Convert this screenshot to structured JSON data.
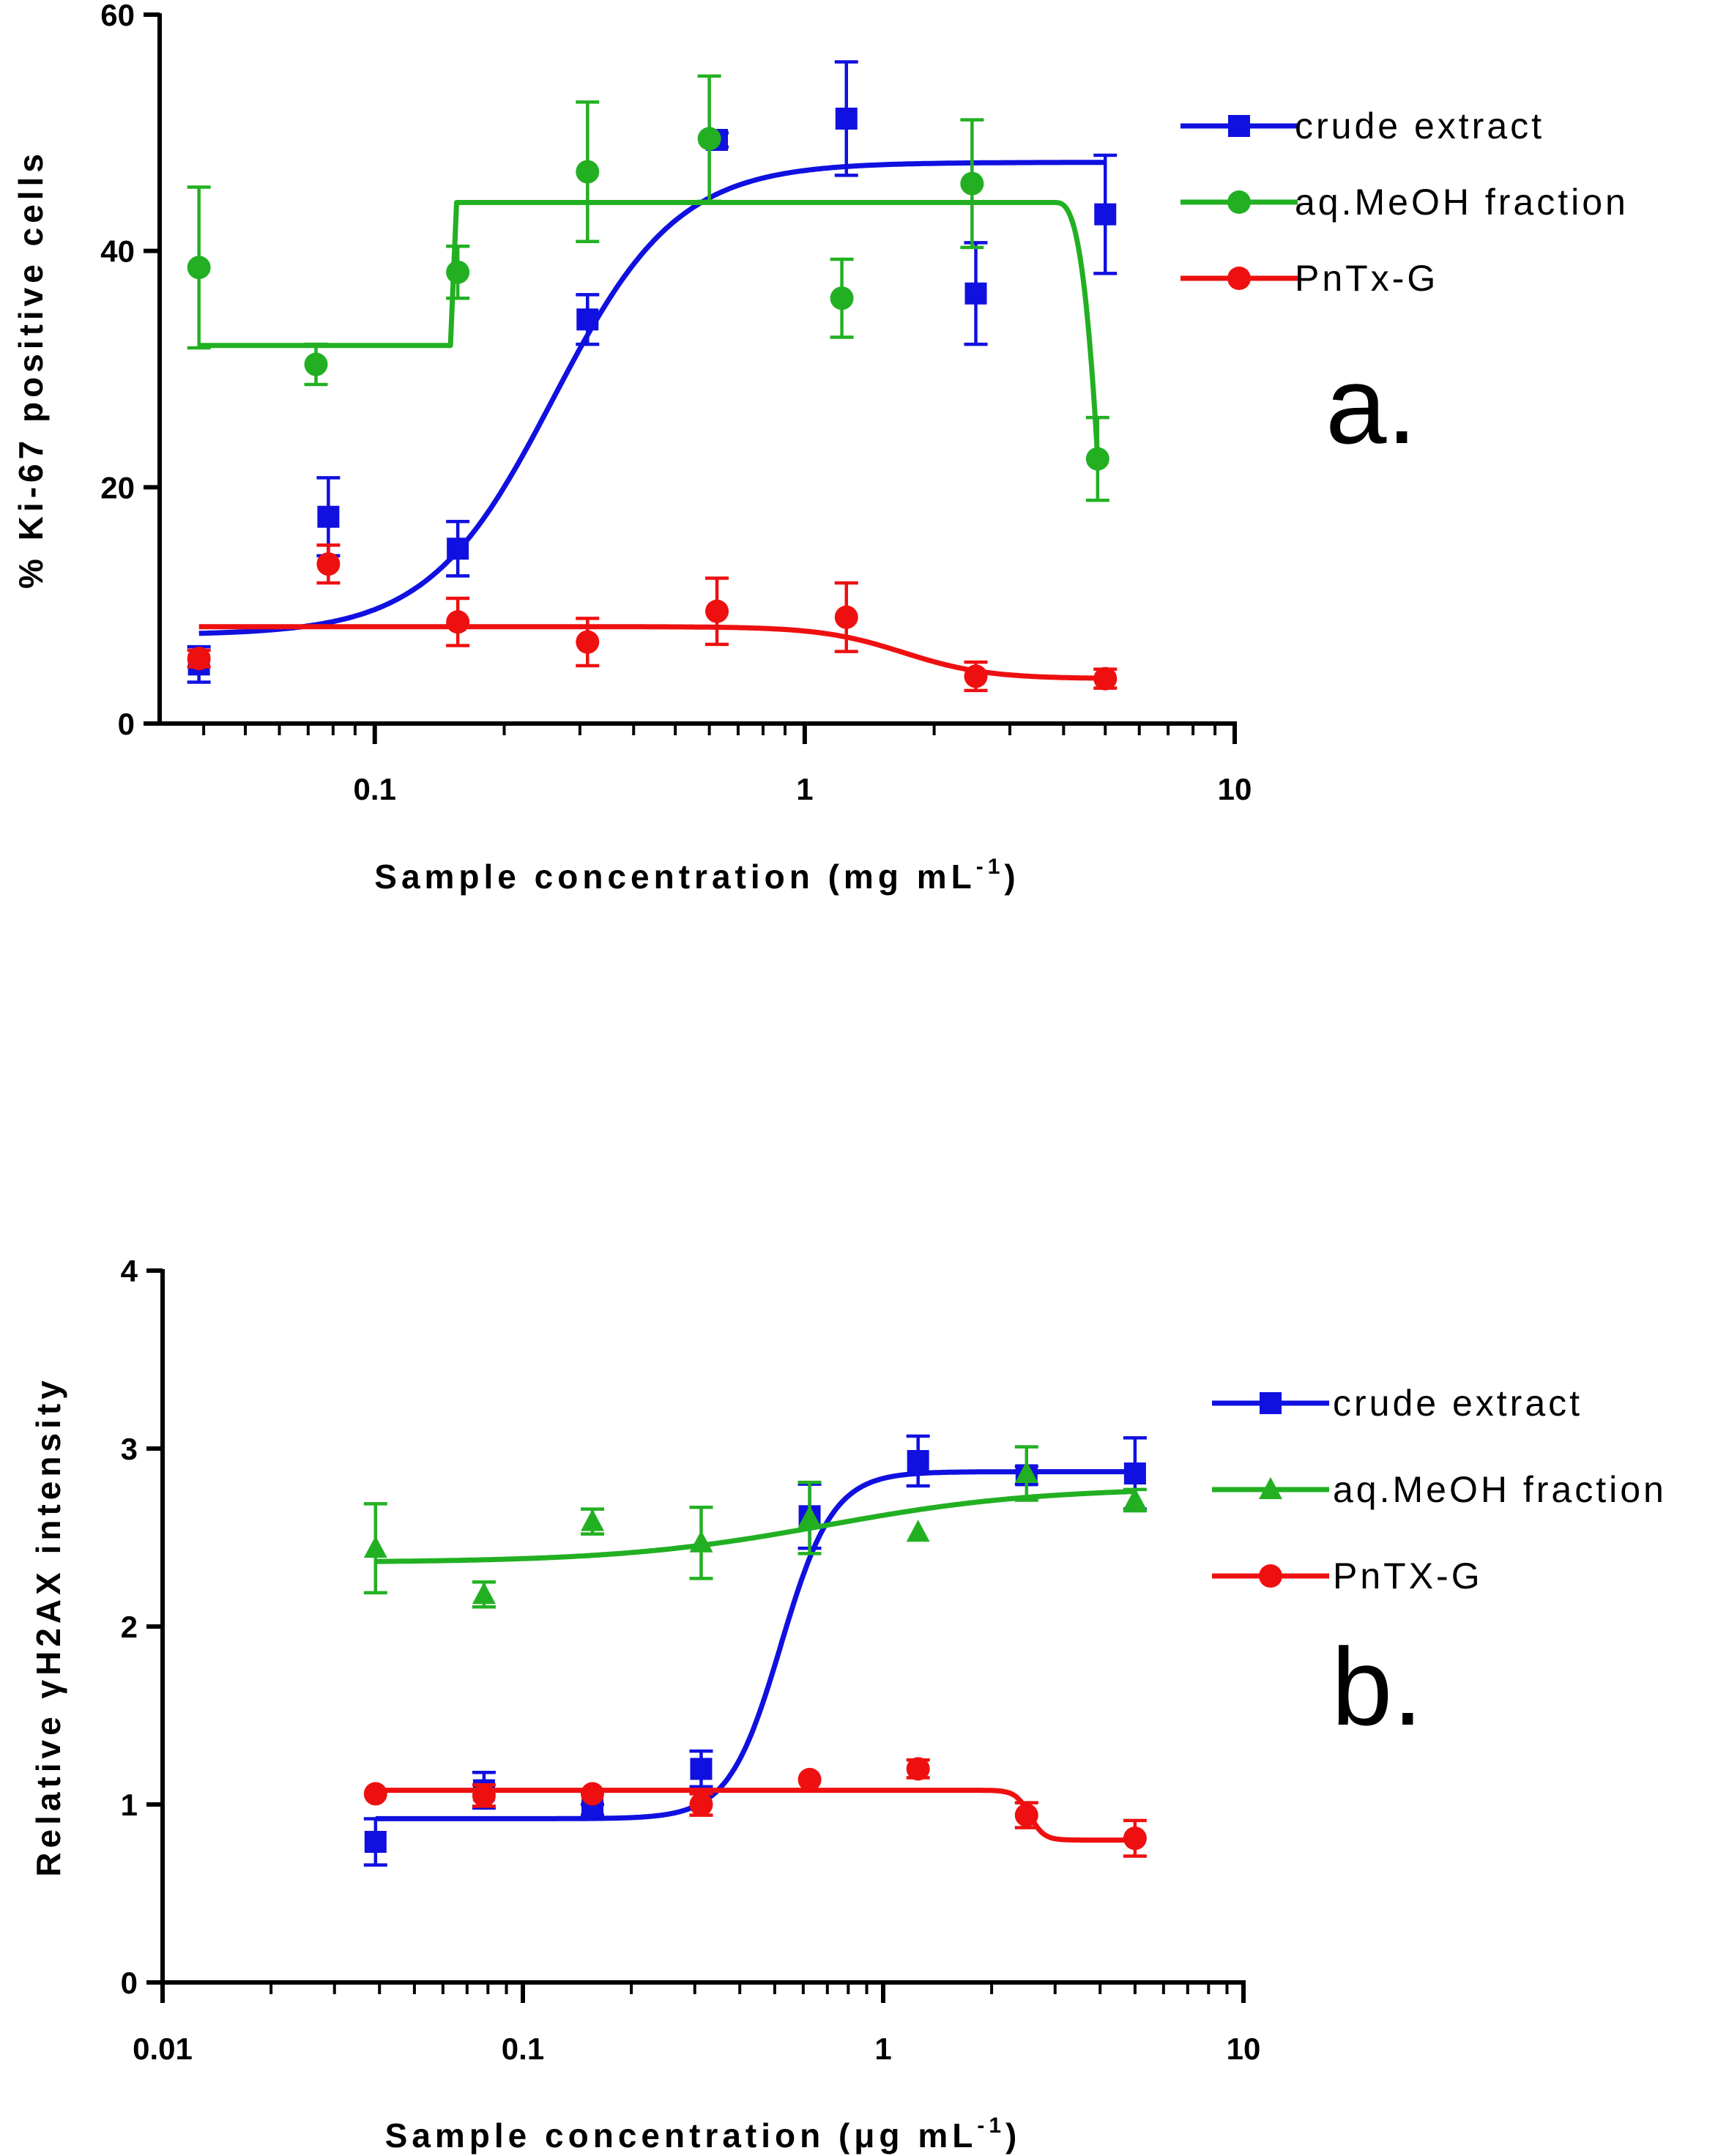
{
  "chart_data": [
    {
      "id": "panel-a",
      "type": "scatter",
      "panel_label": "a.",
      "xlabel": "Sample concentration (mg mL",
      "xlabel_sup": "-1",
      "xlabel_tail": ")",
      "ylabel": "% Ki-67 positive cells",
      "xscale": "log",
      "xlim": [
        0.0316,
        10
      ],
      "ylim": [
        0,
        60
      ],
      "xticks": [
        {
          "value": 0.1,
          "label": "0.1"
        },
        {
          "value": 1,
          "label": "1"
        },
        {
          "value": 10,
          "label": "10"
        }
      ],
      "yticks": [
        {
          "value": 0,
          "label": "0"
        },
        {
          "value": 20,
          "label": "20"
        },
        {
          "value": 40,
          "label": "40"
        },
        {
          "value": 60,
          "label": "60"
        }
      ],
      "series": [
        {
          "name": "crude extract",
          "color": "#1010e0",
          "marker": "square",
          "points": [
            {
              "x": 0.039,
              "y": 5.0,
              "err": 1.5
            },
            {
              "x": 0.078,
              "y": 17.5,
              "err": 3.3
            },
            {
              "x": 0.156,
              "y": 14.8,
              "err": 2.3
            },
            {
              "x": 0.3125,
              "y": 34.2,
              "err": 2.1
            },
            {
              "x": 0.625,
              "y": 49.4,
              "err": 0.6
            },
            {
              "x": 1.25,
              "y": 51.2,
              "err": 4.8
            },
            {
              "x": 2.5,
              "y": 36.4,
              "err": 4.3
            },
            {
              "x": 5.0,
              "y": 43.1,
              "err": 5.0
            }
          ],
          "curve": {
            "kind": "sigmoid",
            "bottom": 7.5,
            "top": 47.5,
            "ec50": 0.26,
            "hill": 3.0,
            "xmin": 0.039,
            "xmax": 5.0
          }
        },
        {
          "name": "aq.MeOH fraction",
          "color": "#22b022",
          "marker": "circle",
          "points": [
            {
              "x": 0.039,
              "y": 38.6,
              "err": 6.8
            },
            {
              "x": 0.073,
              "y": 30.4,
              "err": 1.7
            },
            {
              "x": 0.156,
              "y": 38.2,
              "err": 2.2
            },
            {
              "x": 0.3125,
              "y": 46.7,
              "err": 5.9
            },
            {
              "x": 0.6,
              "y": 49.5,
              "err": 5.3
            },
            {
              "x": 1.22,
              "y": 36.0,
              "err": 3.3
            },
            {
              "x": 2.45,
              "y": 45.7,
              "err": 5.4
            },
            {
              "x": 4.8,
              "y": 22.4,
              "err": 3.5
            }
          ],
          "curve": {
            "kind": "step",
            "levels": [
              32.0,
              44.1,
              22.4
            ],
            "x_steps": [
              0.039,
              0.15,
              0.155,
              3.8,
              4.8
            ]
          }
        },
        {
          "name": "PnTx-G",
          "color": "#ee1010",
          "marker": "circle",
          "points": [
            {
              "x": 0.039,
              "y": 5.5,
              "err": 0.7
            },
            {
              "x": 0.078,
              "y": 13.5,
              "err": 1.6
            },
            {
              "x": 0.156,
              "y": 8.6,
              "err": 2.0
            },
            {
              "x": 0.3125,
              "y": 6.9,
              "err": 2.0
            },
            {
              "x": 0.625,
              "y": 9.5,
              "err": 2.8
            },
            {
              "x": 1.25,
              "y": 9.0,
              "err": 2.9
            },
            {
              "x": 2.5,
              "y": 4.0,
              "err": 1.2
            },
            {
              "x": 5.0,
              "y": 3.8,
              "err": 0.8
            }
          ],
          "curve": {
            "kind": "sigmoid",
            "bottom": 3.8,
            "top": 8.2,
            "ec50": 1.7,
            "hill": -4.5,
            "xmin": 0.039,
            "xmax": 5.0
          }
        }
      ],
      "legend_position": "top-right"
    },
    {
      "id": "panel-b",
      "type": "scatter",
      "panel_label": "b.",
      "xlabel": "Sample concentration (μg mL",
      "xlabel_sup": "-1",
      "xlabel_tail": ")",
      "ylabel": "Relative  γH2AX intensity",
      "xscale": "log",
      "xlim": [
        0.01,
        10
      ],
      "ylim": [
        0,
        4
      ],
      "xticks": [
        {
          "value": 0.01,
          "label": "0.01"
        },
        {
          "value": 0.1,
          "label": "0.1"
        },
        {
          "value": 1,
          "label": "1"
        },
        {
          "value": 10,
          "label": "10"
        }
      ],
      "yticks": [
        {
          "value": 0,
          "label": "0"
        },
        {
          "value": 1,
          "label": "1"
        },
        {
          "value": 2,
          "label": "2"
        },
        {
          "value": 3,
          "label": "3"
        },
        {
          "value": 4,
          "label": "4"
        }
      ],
      "series": [
        {
          "name": "crude extract",
          "color": "#1010e0",
          "marker": "square",
          "points": [
            {
              "x": 0.039,
              "y": 0.79,
              "err": 0.13
            },
            {
              "x": 0.078,
              "y": 1.08,
              "err": 0.1
            },
            {
              "x": 0.156,
              "y": 0.97,
              "err": 0.03
            },
            {
              "x": 0.3125,
              "y": 1.2,
              "err": 0.1
            },
            {
              "x": 0.625,
              "y": 2.62,
              "err": 0.18
            },
            {
              "x": 1.25,
              "y": 2.93,
              "err": 0.14
            },
            {
              "x": 2.5,
              "y": 2.85,
              "err": 0.05
            },
            {
              "x": 5.0,
              "y": 2.86,
              "err": 0.2
            }
          ],
          "curve": {
            "kind": "sigmoid",
            "bottom": 0.92,
            "top": 2.87,
            "ec50": 0.52,
            "hill": 6.0,
            "xmin": 0.039,
            "xmax": 5.0
          }
        },
        {
          "name": "aq.MeOH fraction",
          "color": "#22b022",
          "marker": "triangle",
          "points": [
            {
              "x": 0.039,
              "y": 2.44,
              "err": 0.25
            },
            {
              "x": 0.078,
              "y": 2.18,
              "err": 0.07
            },
            {
              "x": 0.156,
              "y": 2.59,
              "err": 0.07
            },
            {
              "x": 0.3125,
              "y": 2.47,
              "err": 0.2
            },
            {
              "x": 0.625,
              "y": 2.61,
              "err": 0.2
            },
            {
              "x": 1.25,
              "y": 2.53,
              "err": 0.0
            },
            {
              "x": 2.5,
              "y": 2.86,
              "err": 0.15
            },
            {
              "x": 5.0,
              "y": 2.71,
              "err": 0.06
            }
          ],
          "curve": {
            "kind": "sigmoid",
            "bottom": 2.36,
            "top": 2.78,
            "ec50": 0.7,
            "hill": 1.5,
            "xmin": 0.039,
            "xmax": 5.0
          }
        },
        {
          "name": "PnTX-G",
          "color": "#ee1010",
          "marker": "circle",
          "points": [
            {
              "x": 0.039,
              "y": 1.06,
              "err": 0.0
            },
            {
              "x": 0.078,
              "y": 1.05,
              "err": 0.06
            },
            {
              "x": 0.156,
              "y": 1.06,
              "err": 0.0
            },
            {
              "x": 0.3125,
              "y": 1.0,
              "err": 0.06
            },
            {
              "x": 0.625,
              "y": 1.14,
              "err": 0.0
            },
            {
              "x": 1.25,
              "y": 1.2,
              "err": 0.05
            },
            {
              "x": 2.5,
              "y": 0.94,
              "err": 0.07
            },
            {
              "x": 5.0,
              "y": 0.81,
              "err": 0.1
            }
          ],
          "curve": {
            "kind": "sigmoid",
            "bottom": 0.8,
            "top": 1.08,
            "ec50": 2.55,
            "hill": -22,
            "xmin": 0.039,
            "xmax": 5.0
          }
        }
      ],
      "legend_position": "right"
    }
  ]
}
